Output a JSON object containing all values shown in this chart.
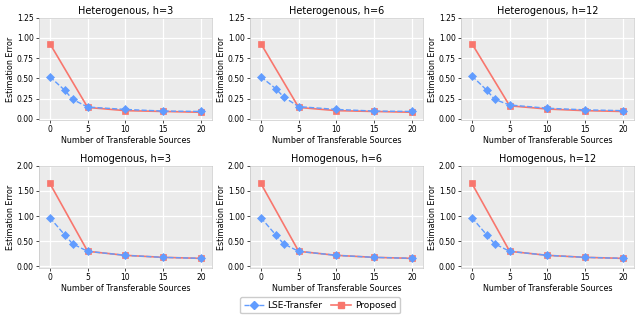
{
  "titles_row1": [
    "Heterogenous, h=3",
    "Heterogenous, h=6",
    "Heterogenous, h=12"
  ],
  "titles_row2": [
    "Homogenous, h=3",
    "Homogenous, h=6",
    "Homogenous, h=12"
  ],
  "xlabel": "Number of Transferable Sources",
  "ylabel": "Estimation Error",
  "x_lse": [
    0,
    2,
    3,
    5,
    10,
    15,
    20
  ],
  "x_prop": [
    0,
    5,
    10,
    15,
    20
  ],
  "het_lse": [
    [
      0.52,
      0.35,
      0.24,
      0.145,
      0.115,
      0.095,
      0.09
    ],
    [
      0.52,
      0.37,
      0.27,
      0.15,
      0.115,
      0.095,
      0.09
    ],
    [
      0.53,
      0.35,
      0.24,
      0.17,
      0.13,
      0.11,
      0.1
    ]
  ],
  "het_prop": [
    [
      0.93,
      0.14,
      0.1,
      0.09,
      0.08
    ],
    [
      0.93,
      0.14,
      0.1,
      0.09,
      0.08
    ],
    [
      0.93,
      0.16,
      0.12,
      0.1,
      0.09
    ]
  ],
  "hom_lse": [
    [
      0.97,
      0.62,
      0.45,
      0.3,
      0.22,
      0.18,
      0.16
    ],
    [
      0.97,
      0.62,
      0.45,
      0.3,
      0.22,
      0.18,
      0.16
    ],
    [
      0.97,
      0.62,
      0.45,
      0.3,
      0.22,
      0.18,
      0.16
    ]
  ],
  "hom_prop": [
    [
      1.65,
      0.3,
      0.22,
      0.18,
      0.16
    ],
    [
      1.65,
      0.3,
      0.22,
      0.18,
      0.16
    ],
    [
      1.65,
      0.3,
      0.22,
      0.18,
      0.16
    ]
  ],
  "ylim_het": [
    -0.02,
    1.25
  ],
  "ylim_hom": [
    -0.04,
    2.0
  ],
  "yticks_het": [
    0.0,
    0.25,
    0.5,
    0.75,
    1.0,
    1.25
  ],
  "yticks_hom": [
    0.0,
    0.5,
    1.0,
    1.5,
    2.0
  ],
  "xticks": [
    0,
    5,
    10,
    15,
    20
  ],
  "bg_color": "#ebebeb",
  "lse_color": "#619cff",
  "prop_color": "#f8766d",
  "legend_labels": [
    "LSE-Transfer",
    "Proposed"
  ]
}
